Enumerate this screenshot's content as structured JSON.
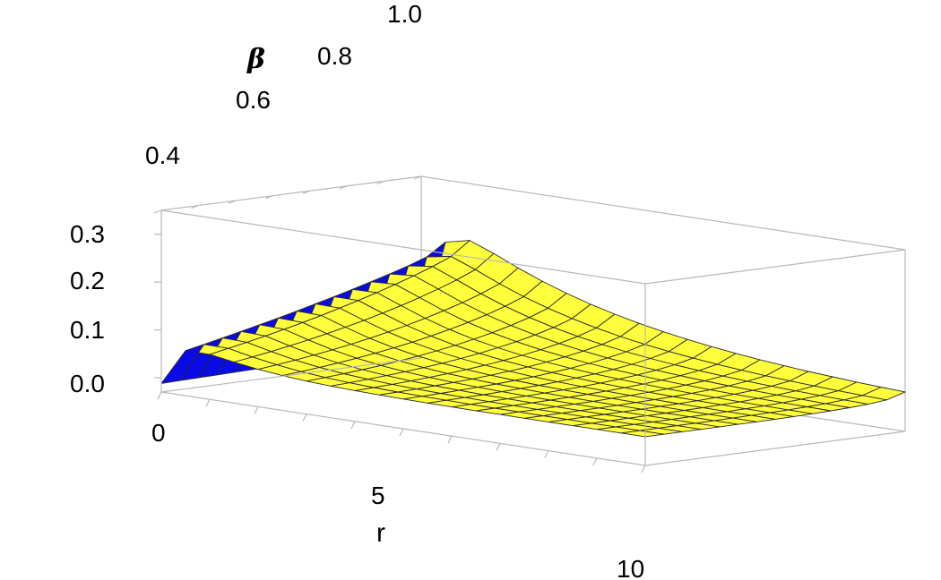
{
  "chart_data": {
    "type": "surface3d",
    "title": "",
    "axes": {
      "r": {
        "label": "r",
        "range": [
          0,
          10
        ],
        "ticks": [
          "0",
          "5",
          "10"
        ]
      },
      "beta": {
        "label": "β",
        "range": [
          0.3,
          1.0
        ],
        "ticks": [
          "0.4",
          "0.6",
          "0.8",
          "1.0"
        ]
      },
      "z": {
        "label": "",
        "range": [
          -0.03,
          0.35
        ],
        "ticks": [
          "0.0",
          "0.1",
          "0.2",
          "0.3"
        ]
      }
    },
    "surface_colors": {
      "top": "#ffff3b",
      "bottom": "#0a0ae6",
      "mesh": "#2a2a2a",
      "box": "#b8b8b8"
    },
    "grid": {
      "r_lines": 20,
      "beta_lines": 14
    },
    "description_points": [
      {
        "r": 0,
        "beta": 0.3,
        "z": -0.02
      },
      {
        "r": 0.8,
        "beta": 0.35,
        "z": 0.18
      },
      {
        "r": 1,
        "beta": 0.95,
        "z": 0.33
      },
      {
        "r": 10,
        "beta": 0.3,
        "z": 0.0
      },
      {
        "r": 10,
        "beta": 1.0,
        "z": 0.05
      }
    ]
  }
}
